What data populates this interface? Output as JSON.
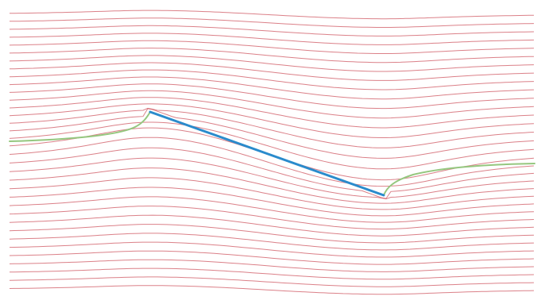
{
  "diagram": {
    "type": "streamline-plot",
    "elements": [
      {
        "name": "streamlines",
        "count": 35,
        "color": "#cf5560"
      },
      {
        "name": "separating-streamlines",
        "count": 2,
        "color": "#95c77f"
      },
      {
        "name": "inclined-segment",
        "count": 1,
        "color": "#2a8bcc"
      }
    ],
    "background": "#ffffff"
  }
}
